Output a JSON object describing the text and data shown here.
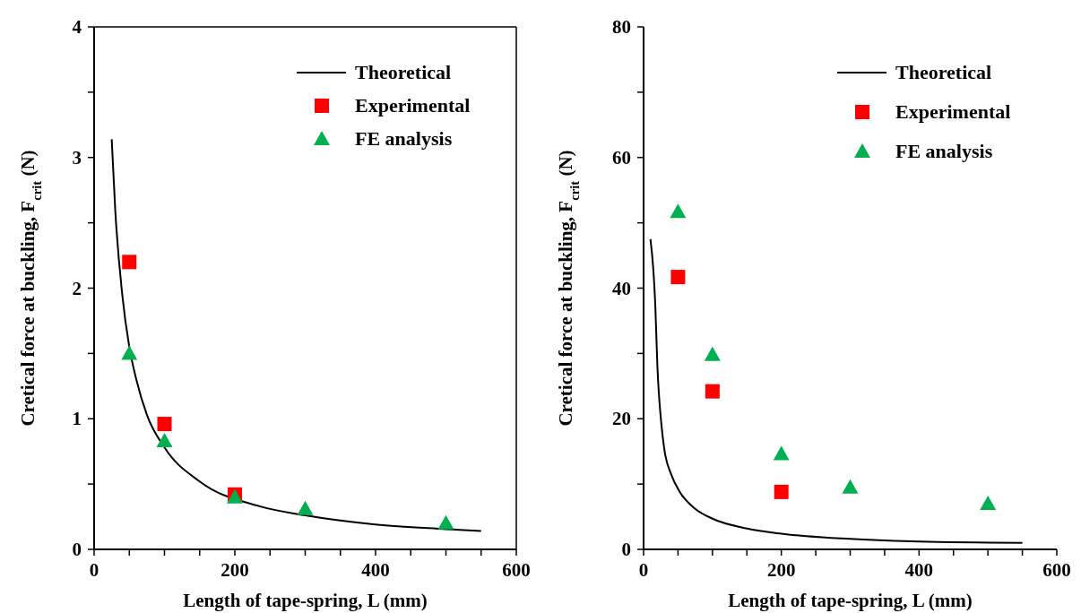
{
  "chart_data": [
    {
      "type": "scatter",
      "xlabel": "Length of tape-spring, L (mm)",
      "ylabel": "Cretical force at buckling, F$_{crit}$ (N)",
      "xlim": [
        0,
        600
      ],
      "ylim": [
        0,
        4
      ],
      "xticks": [
        0,
        {
          "value": 50,
          "label": null
        },
        {
          "value": 100,
          "label": null
        },
        {
          "value": 150,
          "label": null
        },
        200,
        {
          "value": 250,
          "label": null
        },
        {
          "value": 300,
          "label": null
        },
        {
          "value": 350,
          "label": null
        },
        400,
        {
          "value": 450,
          "label": null
        },
        {
          "value": 500,
          "label": null
        },
        {
          "value": 550,
          "label": null
        },
        600
      ],
      "yticks": [
        0,
        {
          "value": 0.5,
          "label": null
        },
        1,
        {
          "value": 1.5,
          "label": null
        },
        2,
        {
          "value": 2.5,
          "label": null
        },
        3,
        {
          "value": 3.5,
          "label": null
        },
        4
      ],
      "legend": "top right",
      "grid": false,
      "series": [
        {
          "name": "Theoretical",
          "type": "line",
          "marker": "none",
          "line_style": "solid",
          "color": "#000000",
          "x": [
            25,
            30,
            40,
            50,
            60,
            75,
            100,
            150,
            235,
            300,
            400,
            500,
            550
          ],
          "values": [
            3.14,
            2.6,
            1.95,
            1.55,
            1.3,
            1.03,
            0.78,
            0.52,
            0.33,
            0.26,
            0.19,
            0.155,
            0.14
          ]
        },
        {
          "name": "Experimental",
          "marker": "square",
          "color": "#ff0000",
          "x": [
            50,
            100,
            200
          ],
          "values": [
            2.2,
            0.96,
            0.42
          ]
        },
        {
          "name": "FE analysis",
          "marker": "triangle",
          "color": "#00b050",
          "x": [
            50,
            100,
            200,
            300,
            500
          ],
          "values": [
            1.5,
            0.83,
            0.4,
            0.31,
            0.2
          ]
        }
      ]
    },
    {
      "type": "scatter",
      "xlabel": "Length of tape-spring, L (mm)",
      "ylabel": "Cretical force at buckling, F$_{crit}$ (N)",
      "xlim": [
        0,
        600
      ],
      "ylim": [
        0,
        80
      ],
      "xticks": [
        0,
        {
          "value": 50,
          "label": null
        },
        {
          "value": 100,
          "label": null
        },
        {
          "value": 150,
          "label": null
        },
        200,
        {
          "value": 250,
          "label": null
        },
        {
          "value": 300,
          "label": null
        },
        {
          "value": 350,
          "label": null
        },
        400,
        {
          "value": 450,
          "label": null
        },
        {
          "value": 500,
          "label": null
        },
        {
          "value": 550,
          "label": null
        },
        600
      ],
      "yticks": [
        0,
        {
          "value": 10,
          "label": null
        },
        20,
        {
          "value": 30,
          "label": null
        },
        40,
        {
          "value": 50,
          "label": null
        },
        60,
        {
          "value": 70,
          "label": null
        },
        80
      ],
      "legend": "top right",
      "grid": false,
      "series": [
        {
          "name": "Theoretical",
          "type": "line",
          "marker": "none",
          "line_style": "solid",
          "color": "#000000",
          "x": [
            10,
            17,
            20,
            26,
            30,
            40,
            52,
            75,
            100,
            150,
            200,
            300,
            400,
            550
          ],
          "values": [
            47.5,
            37.4,
            28.2,
            19,
            15.4,
            11.5,
            8.9,
            6.2,
            4.7,
            3.2,
            2.4,
            1.6,
            1.2,
            1.0
          ]
        },
        {
          "name": "Experimental",
          "marker": "square",
          "color": "#ff0000",
          "x": [
            50,
            100,
            200
          ],
          "values": [
            41.7,
            24.2,
            8.8
          ]
        },
        {
          "name": "FE analysis",
          "marker": "triangle",
          "color": "#00b050",
          "x": [
            50,
            100,
            200,
            300,
            500
          ],
          "values": [
            51.7,
            29.8,
            14.6,
            9.5,
            7.0
          ]
        }
      ]
    }
  ]
}
